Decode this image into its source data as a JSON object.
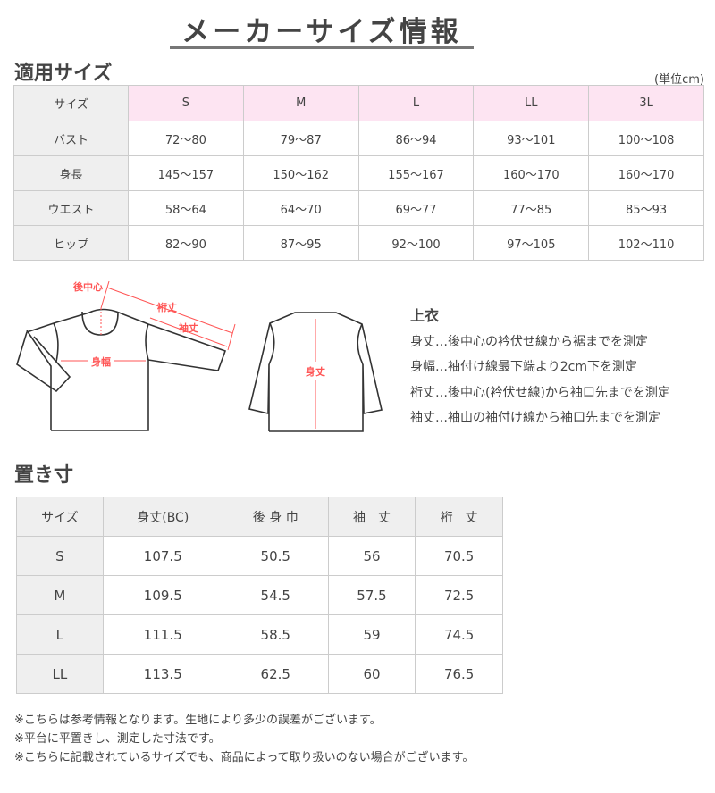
{
  "title": "メーカーサイズ情報",
  "size_section": {
    "heading": "適用サイズ",
    "unit": "(単位cm)",
    "header": [
      "サイズ",
      "S",
      "M",
      "L",
      "LL",
      "3L"
    ],
    "rows": [
      [
        "バスト",
        "72〜80",
        "79〜87",
        "86〜94",
        "93〜101",
        "100〜108"
      ],
      [
        "身長",
        "145〜157",
        "150〜162",
        "155〜167",
        "160〜170",
        "160〜170"
      ],
      [
        "ウエスト",
        "58〜64",
        "64〜70",
        "69〜77",
        "77〜85",
        "85〜93"
      ],
      [
        "ヒップ",
        "82〜90",
        "87〜95",
        "92〜100",
        "97〜105",
        "102〜110"
      ]
    ],
    "header_color": "#fde4f2"
  },
  "diagram": {
    "labels": {
      "back_center": "後中心",
      "yuki": "裄丈",
      "sleeve": "袖丈",
      "width": "身幅",
      "length": "身丈"
    },
    "accent_color": "#ff5555"
  },
  "legend": {
    "title": "上衣",
    "items": [
      "身丈…後中心の衿伏せ線から裾までを測定",
      "身幅…袖付け線最下端より2cm下を測定",
      "裄丈…後中心(衿伏せ線)から袖口先までを測定",
      "袖丈…袖山の袖付け線から袖口先までを測定"
    ]
  },
  "flat_section": {
    "heading": "置き寸",
    "header": [
      "サイズ",
      "身丈(BC)",
      "後 身 巾",
      "袖　丈",
      "裄　丈"
    ],
    "rows": [
      [
        "S",
        "107.5",
        "50.5",
        "56",
        "70.5"
      ],
      [
        "M",
        "109.5",
        "54.5",
        "57.5",
        "72.5"
      ],
      [
        "L",
        "111.5",
        "58.5",
        "59",
        "74.5"
      ],
      [
        "LL",
        "113.5",
        "62.5",
        "60",
        "76.5"
      ]
    ]
  },
  "notes": [
    "※こちらは参考情報となります。生地により多少の誤差がございます。",
    "※平台に平置きし、測定した寸法です。",
    "※こちらに記載されているサイズでも、商品によって取り扱いのない場合がございます。"
  ]
}
